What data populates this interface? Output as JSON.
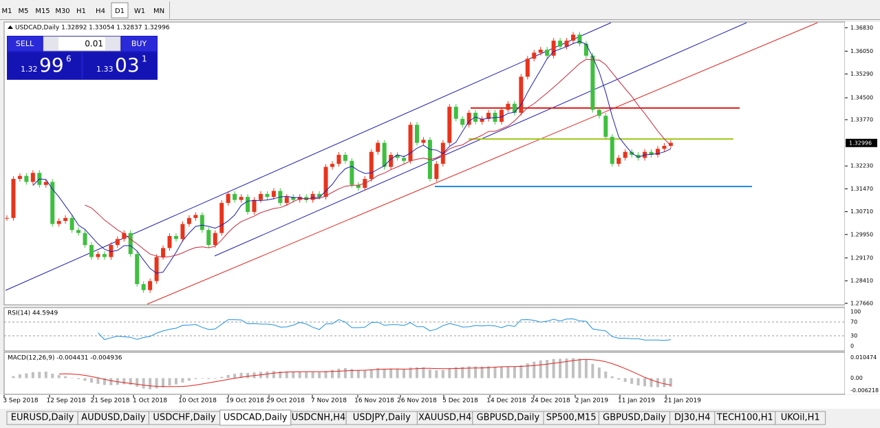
{
  "toolbar": {
    "timeframes": [
      "M1",
      "M5",
      "M15",
      "M30",
      "H1",
      "H4",
      "D1",
      "W1",
      "MN"
    ],
    "active": "D1"
  },
  "chart": {
    "header": "USDCAD,Daily  1.32892 1.33054 1.32837 1.32996",
    "trade_panel": {
      "sell": "SELL",
      "buy": "BUY",
      "lot": "0.01",
      "bid": {
        "big": "1.32",
        "main": "99",
        "small": "6"
      },
      "ask": {
        "big": "1.33",
        "main": "03",
        "small": "1"
      }
    },
    "ylim": [
      1.2761,
      1.3702
    ],
    "yticks": [
      {
        "value": 1.3683,
        "label": "1.36830"
      },
      {
        "value": 1.3605,
        "label": "1.36050"
      },
      {
        "value": 1.3529,
        "label": "1.35290"
      },
      {
        "value": 1.345,
        "label": "1.34500"
      },
      {
        "value": 1.3377,
        "label": "1.33770"
      },
      {
        "value": 1.3223,
        "label": "1.32230"
      },
      {
        "value": 1.3147,
        "label": "1.31470"
      },
      {
        "value": 1.3071,
        "label": "1.30710"
      },
      {
        "value": 1.2995,
        "label": "1.29950"
      },
      {
        "value": 1.2917,
        "label": "1.29170"
      },
      {
        "value": 1.2841,
        "label": "1.28410"
      },
      {
        "value": 1.2766,
        "label": "1.27660"
      }
    ],
    "current_price": {
      "value": 1.32996,
      "label": "1.32996"
    },
    "closes": [
      1.305,
      1.318,
      1.319,
      1.317,
      1.32,
      1.316,
      1.317,
      1.303,
      1.304,
      1.305,
      1.301,
      1.3,
      1.296,
      1.292,
      1.293,
      1.292,
      1.296,
      1.298,
      1.3,
      1.293,
      1.283,
      1.281,
      1.284,
      1.292,
      1.295,
      1.299,
      1.298,
      1.303,
      1.305,
      1.306,
      1.301,
      1.296,
      1.3,
      1.31,
      1.313,
      1.311,
      1.312,
      1.307,
      1.311,
      1.313,
      1.312,
      1.314,
      1.31,
      1.312,
      1.311,
      1.312,
      1.311,
      1.313,
      1.312,
      1.322,
      1.323,
      1.326,
      1.324,
      1.316,
      1.315,
      1.318,
      1.327,
      1.33,
      1.322,
      1.326,
      1.325,
      1.324,
      1.336,
      1.33,
      1.331,
      1.318,
      1.323,
      1.33,
      1.342,
      1.338,
      1.336,
      1.34,
      1.337,
      1.338,
      1.34,
      1.337,
      1.341,
      1.343,
      1.34,
      1.352,
      1.358,
      1.36,
      1.361,
      1.359,
      1.364,
      1.362,
      1.364,
      1.366,
      1.363,
      1.359,
      1.341,
      1.339,
      1.332,
      1.323,
      1.325,
      1.327,
      1.326,
      1.325,
      1.327,
      1.326,
      1.328,
      1.329,
      1.33
    ],
    "date_labels": [
      "3 Sep 2018",
      "12 Sep 2018",
      "21 Sep 2018",
      "1 Oct 2018",
      "10 Oct 2018",
      "19 Oct 2018",
      "29 Oct 2018",
      "7 Nov 2018",
      "16 Nov 2018",
      "26 Nov 2018",
      "5 Dec 2018",
      "14 Dec 2018",
      "24 Dec 2018",
      "2 Jan 2019",
      "11 Jan 2019",
      "21 Jan 2019"
    ]
  },
  "rsi": {
    "label": "RSI(14) 44.5949",
    "ylim": [
      0,
      100
    ],
    "yticks": [
      100,
      70,
      30,
      0
    ]
  },
  "macd": {
    "label": "MACD(12,26,9) -0.004431 -0.004936",
    "ylim": [
      -0.0071,
      0.012
    ],
    "yticks": [
      0.010474,
      {
        "value": 0,
        "label": "0.00"
      },
      -0.006218
    ]
  },
  "tabs": {
    "items": [
      "EURUSD,Daily",
      "AUDUSD,Daily",
      "USDCHF,Daily",
      "USDCAD,Daily",
      "USDCNH,H4",
      "USDJPY,Daily",
      "XAUUSD,H4",
      "GBPUSD,Daily",
      "SP500,M15",
      "GBPUSD,Daily",
      "DJ30,H4",
      "TECH100,H1",
      "UKOil,H1"
    ],
    "active": "USDCAD,Daily"
  }
}
